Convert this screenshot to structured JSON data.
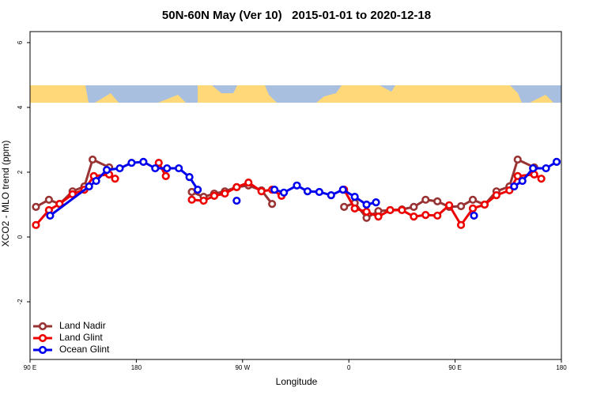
{
  "chart_data": {
    "type": "line",
    "title": "50N-60N May (Ver 10)   2015-01-01 to 2020-12-18",
    "xlabel": "Longitude",
    "ylabel": "XCO2 - MLO trend (ppm)",
    "xlim": [
      90,
      540
    ],
    "ylim": [
      -3.78,
      6.34
    ],
    "xticks": [
      {
        "value": 90,
        "label": "90 E"
      },
      180,
      {
        "value": 270,
        "label": "90 W"
      },
      {
        "value": 360,
        "label": "0"
      },
      {
        "value": 450,
        "label": "90 E"
      },
      {
        "value": 540,
        "label": "180"
      }
    ],
    "yticks": [
      -2,
      0,
      2,
      4,
      6
    ],
    "legend": "bottom-left",
    "series": [
      {
        "name": "Land Nadir",
        "color": "#993333",
        "x": [
          95,
          106,
          115,
          126,
          136,
          143,
          157,
          190,
          227,
          237,
          246,
          255,
          265,
          275,
          286,
          295,
          330,
          356,
          365,
          375,
          385,
          395,
          405,
          415,
          425,
          435,
          445,
          455,
          465,
          475,
          485,
          496,
          503,
          517
        ],
        "values": [
          0.93,
          1.15,
          1.02,
          1.41,
          1.56,
          2.39,
          2.15,
          null,
          1.39,
          1.24,
          1.34,
          1.41,
          1.54,
          1.59,
          1.44,
          1.02,
          null,
          0.93,
          1.05,
          0.59,
          0.8,
          0.83,
          0.85,
          0.93,
          1.15,
          1.1,
          0.93,
          0.95,
          1.15,
          1.0,
          1.41,
          1.56,
          2.39,
          2.15
        ]
      },
      {
        "name": "Land Glint",
        "color": "#ee0000",
        "x": [
          95,
          106,
          115,
          126,
          136,
          144,
          157,
          162,
          180,
          199,
          205,
          215,
          227,
          237,
          246,
          255,
          265,
          275,
          286,
          295,
          303,
          330,
          356,
          365,
          375,
          385,
          395,
          405,
          415,
          425,
          435,
          445,
          455,
          465,
          475,
          485,
          496,
          503,
          517,
          523
        ],
        "values": [
          0.37,
          0.83,
          1.02,
          1.32,
          1.46,
          1.88,
          1.93,
          1.8,
          null,
          2.29,
          1.88,
          null,
          1.15,
          1.12,
          1.27,
          1.34,
          1.54,
          1.68,
          1.41,
          1.46,
          1.27,
          null,
          1.46,
          0.88,
          0.78,
          0.63,
          0.83,
          0.83,
          0.63,
          0.68,
          0.66,
          0.98,
          0.37,
          0.88,
          1.0,
          1.29,
          1.44,
          1.88,
          1.93,
          1.8
        ]
      },
      {
        "name": "Ocean Glint",
        "color": "#0000ee",
        "x": [
          107,
          140,
          146,
          155,
          166,
          176,
          186,
          196,
          206,
          216,
          225,
          232,
          250,
          265,
          280,
          297,
          305,
          316,
          325,
          335,
          345,
          355,
          365,
          375,
          383,
          420,
          466,
          480,
          500,
          507,
          516,
          527,
          536
        ],
        "values": [
          0.66,
          1.56,
          1.73,
          2.07,
          2.12,
          2.29,
          2.32,
          2.12,
          2.12,
          2.12,
          1.85,
          1.46,
          null,
          1.12,
          null,
          1.46,
          1.37,
          1.59,
          1.41,
          1.39,
          1.29,
          1.46,
          1.24,
          1.0,
          1.07,
          null,
          0.66,
          null,
          1.56,
          1.73,
          2.12,
          2.12,
          2.32
        ]
      }
    ]
  }
}
